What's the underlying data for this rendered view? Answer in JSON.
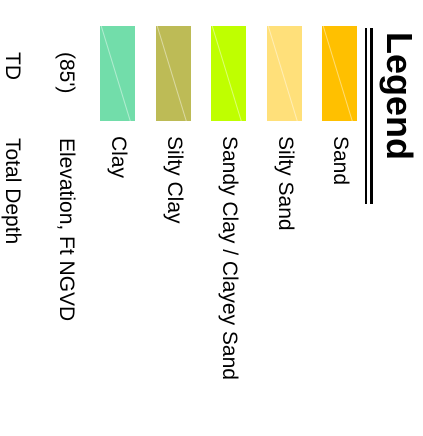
{
  "legend": {
    "title": "Legend",
    "soil_types": [
      {
        "label": "Sand",
        "color": "#FFC000"
      },
      {
        "label": "Silty Sand",
        "color": "#FFE07A"
      },
      {
        "label": "Sandy Clay / Clayey Sand",
        "color": "#BFFF00"
      },
      {
        "label": "Silty Clay",
        "color": "#BDBB56"
      },
      {
        "label": "Clay",
        "color": "#72DDAA"
      }
    ],
    "notes": [
      {
        "abbr": "(85')",
        "text": "Elevation, Ft NGVD"
      },
      {
        "abbr": "TD",
        "text": "Total Depth"
      }
    ]
  }
}
